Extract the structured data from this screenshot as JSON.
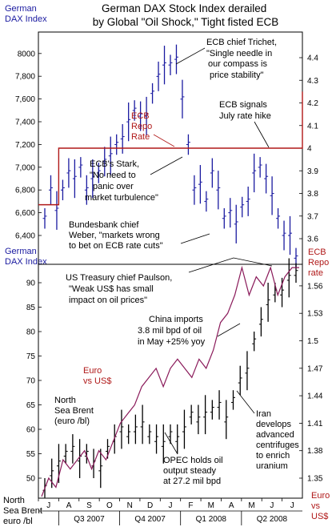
{
  "title_lines": [
    "German DAX Stock Index derailed",
    "by Global \"Oil Shock,\" Tight fisted ECB"
  ],
  "chart_data": [
    {
      "type": "line",
      "panel": "top",
      "series": [
        {
          "name": "German DAX Index",
          "style": "high-low bars",
          "values": [
            6550,
            6800,
            6620,
            6800,
            6950,
            6900,
            7000,
            6800,
            6900,
            6950,
            7050,
            7100,
            7200,
            7250,
            7400,
            7500,
            7450,
            7450,
            7650,
            7800,
            7900,
            7900,
            7950,
            7600,
            7200,
            6800,
            6850,
            6700,
            6950,
            6800,
            6550,
            6600,
            6500,
            6650,
            6700,
            6950,
            7000,
            6900,
            6750,
            6550,
            6400,
            6400,
            6200
          ]
        },
        {
          "name": "ECB Repo Rate",
          "values": [
            3.75,
            3.75,
            4.0,
            4.0,
            4.0,
            4.0,
            4.0,
            4.0,
            4.0,
            4.0,
            4.0,
            4.0,
            4.0,
            4.0,
            4.0,
            4.0,
            4.0,
            4.0,
            4.0,
            4.0,
            4.0,
            4.0,
            4.0,
            4.0,
            4.0,
            4.0,
            4.25
          ]
        }
      ],
      "left_axis": {
        "label": [
          "German",
          "DAX Index"
        ],
        "ticks": [
          "6,400",
          "6,600",
          "6,800",
          "7,000",
          "7,200",
          "7,400",
          "7,600",
          "7,800",
          "8000"
        ]
      },
      "right_axis": {
        "label": [
          "ECB",
          "Repo",
          "rate"
        ],
        "ticks": [
          "3.6",
          "3.7",
          "3.8",
          "3.9",
          "4",
          "4.1",
          "4.2",
          "4.3",
          "4.4"
        ]
      }
    },
    {
      "type": "line",
      "panel": "bottom",
      "series": [
        {
          "name": "North Sea Brent (euro /bl)",
          "style": "high-low bars",
          "values": [
            48,
            51,
            53,
            55,
            56,
            54,
            55,
            53,
            52,
            56,
            58,
            60,
            59,
            60,
            61,
            59,
            58,
            57,
            59,
            58,
            60,
            63,
            62,
            63,
            64,
            65,
            62,
            66,
            70,
            72,
            78,
            82,
            86,
            88,
            88,
            91,
            92
          ]
        },
        {
          "name": "Euro vs US$",
          "values": [
            1.33,
            1.35,
            1.34,
            1.37,
            1.36,
            1.37,
            1.38,
            1.36,
            1.38,
            1.37,
            1.39,
            1.41,
            1.42,
            1.43,
            1.45,
            1.46,
            1.47,
            1.45,
            1.47,
            1.48,
            1.47,
            1.46,
            1.48,
            1.47,
            1.49,
            1.52,
            1.53,
            1.55,
            1.58,
            1.55,
            1.57,
            1.56,
            1.58,
            1.55,
            1.57,
            1.58,
            1.58
          ]
        }
      ],
      "left_axis": {
        "label": [
          "North",
          "Sea Brent",
          "euro /bl"
        ],
        "ticks": [
          "50",
          "55",
          "60",
          "65",
          "70",
          "75",
          "80",
          "85",
          "90"
        ]
      },
      "right_axis": {
        "label": [
          "Euro",
          "vs",
          "US$"
        ],
        "ticks": [
          "1.35",
          "1.38",
          "1.41",
          "1.44",
          "1.47",
          "1.5",
          "1.53",
          "1.56"
        ]
      }
    }
  ],
  "x_axis": {
    "months": [
      "J",
      "A",
      "S",
      "O",
      "N",
      "D",
      "J",
      "F",
      "M",
      "A",
      "M",
      "J",
      "J"
    ],
    "quarters": [
      "Q3 2007",
      "Q4 2007",
      "Q1 2008",
      "Q2 2008"
    ]
  },
  "annotations": {
    "trichet": [
      "ECB chief Trichet,",
      "\"Single needle in",
      "our compass is",
      "price stability\""
    ],
    "ecb_repo_rate": [
      "ECB",
      "Repo",
      "Rate"
    ],
    "ecb_signals": [
      "ECB signals",
      "July rate hike"
    ],
    "stark": [
      "ECB's Stark,",
      "\"No need to",
      "panic over",
      "market turbulence\""
    ],
    "weber": [
      "Bundesbank chief",
      "Weber, \"markets wrong",
      "to bet on ECB rate cuts\""
    ],
    "paulson": [
      "US Treasury chief Paulson,",
      "\"Weak US$ has small",
      "impact on oil prices\""
    ],
    "china": [
      "China imports",
      "3.8 mil bpd of oil",
      "in May +25% yoy"
    ],
    "euro_vs_usd": [
      "Euro",
      "vs US$"
    ],
    "brent": [
      "North",
      "Sea Brent",
      "(euro /bl)"
    ],
    "iran": [
      "Iran",
      "develops",
      "advanced",
      "centrifuges",
      "to enrich",
      "uranium"
    ],
    "opec": [
      "OPEC holds oil",
      "output steady",
      "at 27.2 mil bpd"
    ]
  },
  "colors": {
    "blue": "#1a1aa0",
    "red": "#b01818",
    "black": "#000000"
  }
}
